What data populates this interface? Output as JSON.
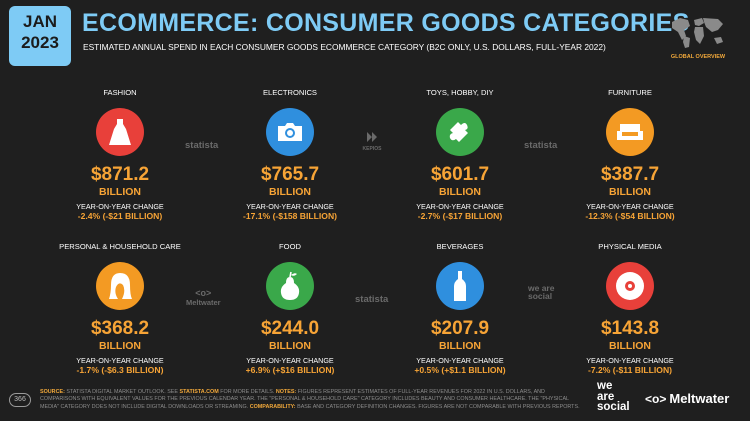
{
  "header": {
    "date_month": "JAN",
    "date_year": "2023",
    "title": "ECOMMERCE: CONSUMER GOODS CATEGORIES",
    "subtitle": "ESTIMATED ANNUAL SPEND IN EACH CONSUMER GOODS ECOMMERCE CATEGORY (B2C ONLY, U.S. DOLLARS, FULL-YEAR 2022)",
    "map_label": "GLOBAL OVERVIEW"
  },
  "watermarks": {
    "statista": "statista",
    "kepios": "KEPIOS",
    "meltwater": "Meltwater",
    "wearesocial": "we are social"
  },
  "change_label": "YEAR-ON-YEAR CHANGE",
  "categories": [
    {
      "name": "FASHION",
      "value": "$871.2",
      "unit": "BILLION",
      "change": "-2.4% (-$21 BILLION)",
      "icon": "dress-icon",
      "color": "#e8403a"
    },
    {
      "name": "ELECTRONICS",
      "value": "$765.7",
      "unit": "BILLION",
      "change": "-17.1% (-$158 BILLION)",
      "icon": "camera-icon",
      "color": "#2f8fde"
    },
    {
      "name": "TOYS, HOBBY, DIY",
      "value": "$601.7",
      "unit": "BILLION",
      "change": "-2.7% (-$17 BILLION)",
      "icon": "puzzle-icon",
      "color": "#3aa84a"
    },
    {
      "name": "FURNITURE",
      "value": "$387.7",
      "unit": "BILLION",
      "change": "-12.3% (-$54 BILLION)",
      "icon": "sofa-icon",
      "color": "#f39a23"
    },
    {
      "name": "PERSONAL & HOUSEHOLD CARE",
      "value": "$368.2",
      "unit": "BILLION",
      "change": "-1.7% (-$6.3 BILLION)",
      "icon": "hair-care-icon",
      "color": "#f39a23"
    },
    {
      "name": "FOOD",
      "value": "$244.0",
      "unit": "BILLION",
      "change": "+6.9% (+$16 BILLION)",
      "icon": "pear-icon",
      "color": "#3aa84a"
    },
    {
      "name": "BEVERAGES",
      "value": "$207.9",
      "unit": "BILLION",
      "change": "+0.5% (+$1.1 BILLION)",
      "icon": "bottle-icon",
      "color": "#2f8fde"
    },
    {
      "name": "PHYSICAL MEDIA",
      "value": "$143.8",
      "unit": "BILLION",
      "change": "-7.2% (-$11 BILLION)",
      "icon": "disc-icon",
      "color": "#e8403a"
    }
  ],
  "footer": {
    "page_number": "366",
    "source_label": "SOURCE:",
    "source_text": "STATISTA DIGITAL MARKET OUTLOOK. SEE",
    "source_link": "STATISTA.COM",
    "source_text2": "FOR MORE DETAILS.",
    "notes_label": "NOTES:",
    "notes_text": "FIGURES REPRESENT ESTIMATES OF FULL-YEAR REVENUES FOR 2022 IN U.S. DOLLARS, AND COMPARISONS WITH EQUIVALENT VALUES FOR THE PREVIOUS CALENDAR YEAR. THE \"PERSONAL & HOUSEHOLD CARE\" CATEGORY INCLUDES BEAUTY AND CONSUMER HEALTHCARE. THE \"PHYSICAL MEDIA\" CATEGORY DOES NOT INCLUDE DIGITAL DOWNLOADS OR STREAMING.",
    "comparability_label": "COMPARABILITY:",
    "comparability_text": "BASE AND CATEGORY DEFINITION CHANGES. FIGURES ARE NOT COMPARABLE WITH PREVIOUS REPORTS.",
    "logo_was_1": "we",
    "logo_was_2": "are",
    "logo_was_3": "social",
    "logo_mw": "Meltwater"
  }
}
